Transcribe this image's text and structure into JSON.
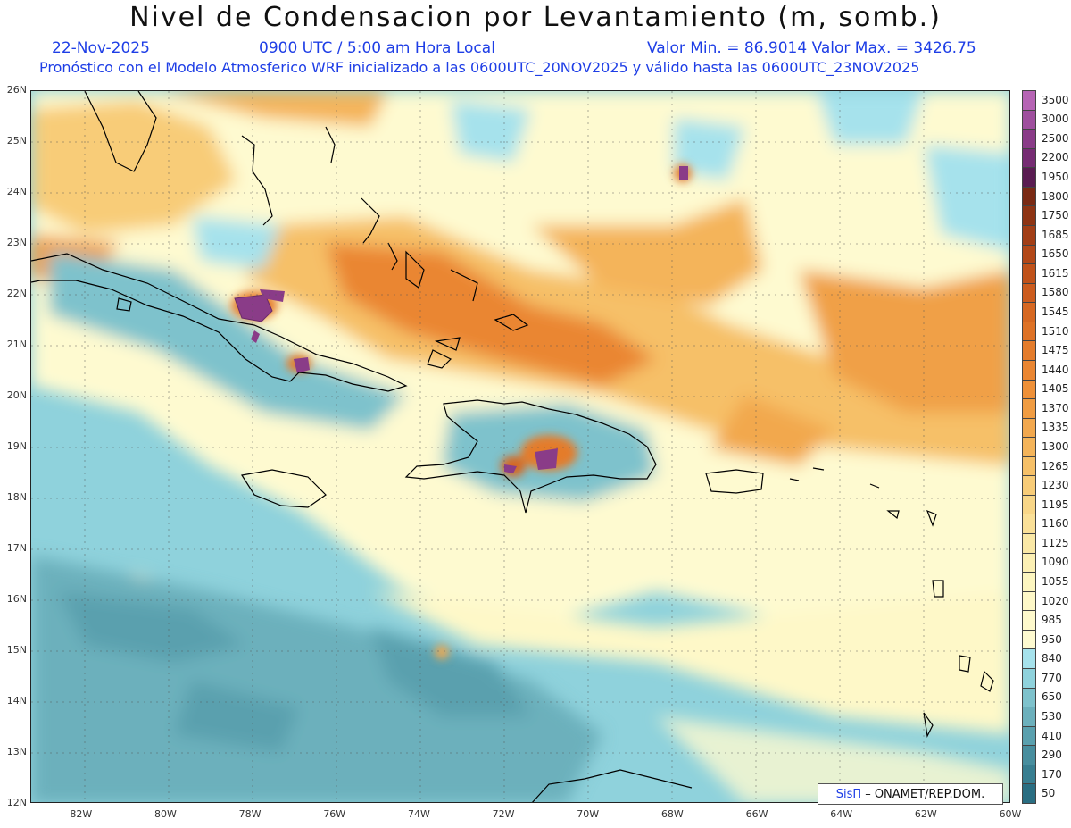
{
  "header": {
    "title": "Nivel de Condensacion por Levantamiento (m, somb.)",
    "date": "22-Nov-2025",
    "time": "0900 UTC / 5:00 am Hora Local",
    "min_max": "Valor Min. = 86.9014   Valor Max. = 3426.75",
    "model_line": "Pronóstico con el Modelo Atmosferico WRF inicializado a las 0600UTC_20NOV2025 y válido hasta las  0600UTC_23NOV2025"
  },
  "axes": {
    "lat_labels": [
      "26N",
      "25N",
      "24N",
      "23N",
      "22N",
      "21N",
      "20N",
      "19N",
      "18N",
      "17N",
      "16N",
      "15N",
      "14N",
      "13N",
      "12N"
    ],
    "lon_labels": [
      "82W",
      "80W",
      "78W",
      "76W",
      "74W",
      "72W",
      "70W",
      "68W",
      "66W",
      "64W",
      "62W",
      "60W"
    ],
    "lat_range": [
      12,
      26
    ],
    "lon_range": [
      -83.2,
      -60
    ]
  },
  "legend": {
    "levels": [
      "3500",
      "3000",
      "2500",
      "2200",
      "1950",
      "1800",
      "1750",
      "1685",
      "1650",
      "1615",
      "1580",
      "1545",
      "1510",
      "1475",
      "1440",
      "1405",
      "1370",
      "1335",
      "1300",
      "1265",
      "1230",
      "1195",
      "1160",
      "1125",
      "1090",
      "1055",
      "1020",
      "985",
      "950",
      "840",
      "770",
      "650",
      "530",
      "410",
      "290",
      "170",
      "50"
    ],
    "colors": [
      "#b664b4",
      "#9f4f9e",
      "#8a3c88",
      "#762c73",
      "#5a1c52",
      "#7a2a14",
      "#8e3414",
      "#a23e16",
      "#b24818",
      "#c0521a",
      "#cc5c1e",
      "#d66822",
      "#de7226",
      "#e47c2c",
      "#ea8632",
      "#ee9038",
      "#f09c42",
      "#f2a84e",
      "#f4b45a",
      "#f6c068",
      "#f8cc78",
      "#f8d688",
      "#fae098",
      "#fae8a6",
      "#fcf0b4",
      "#fdf6c0",
      "#fef8c8",
      "#fef9cc",
      "#fefad0",
      "#a6e2ec",
      "#8fd2dc",
      "#7ec2cc",
      "#6cb0bc",
      "#5aa0ae",
      "#488e9e",
      "#387e90",
      "#2a6e82"
    ]
  },
  "credit": {
    "brand": "SisΠ",
    "text": "– ONAMET/REP.DOM."
  },
  "colors": {
    "text_blue": "#1e3ee6",
    "coast": "#000000"
  }
}
